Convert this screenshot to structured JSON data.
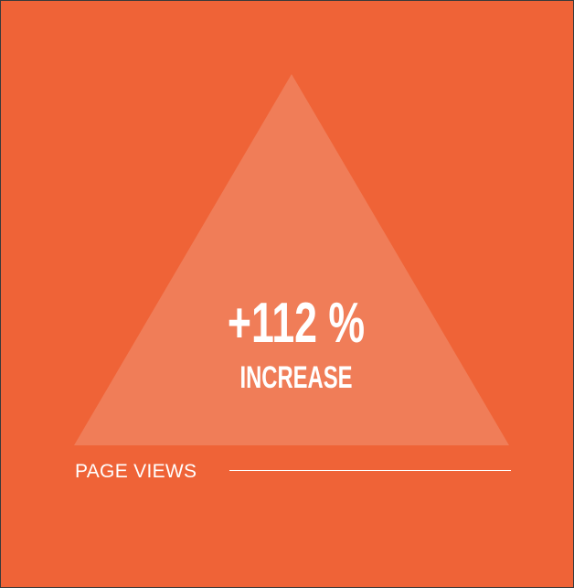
{
  "colors": {
    "background": "#EF6337",
    "triangle_fill": "#F07D58",
    "text": "#FFFFFF"
  },
  "stat": {
    "value": "+112 %",
    "label": "INCREASE"
  },
  "footer": {
    "label": "PAGE VIEWS"
  },
  "icons": {
    "triangle": "triangle-shape"
  }
}
